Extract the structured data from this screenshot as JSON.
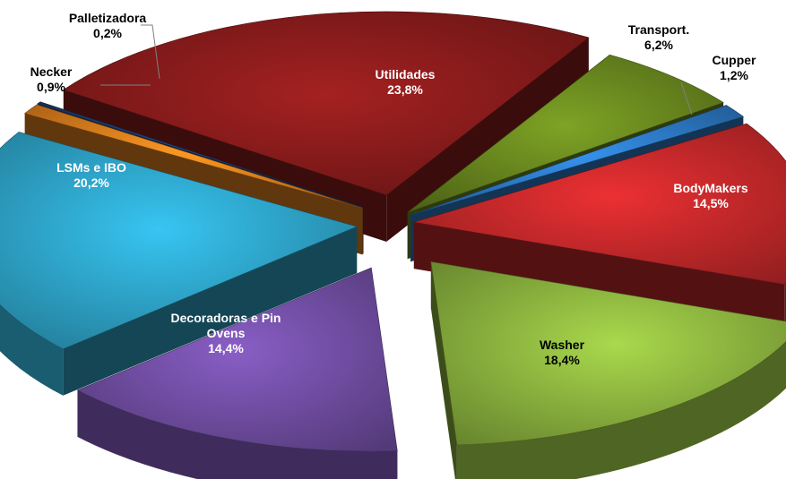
{
  "chart_data": {
    "type": "pie",
    "style": "3d-exploded",
    "title": "",
    "slices": [
      {
        "label": "Utilidades",
        "value": 23.8,
        "display": "23,8%",
        "color": "#8c1c1c",
        "label_color": "#ffffff",
        "label_lines": [
          "Utilidades"
        ]
      },
      {
        "label": "Transport.",
        "value": 6.2,
        "display": "6,2%",
        "color": "#6b8a1f",
        "label_color": "#000000",
        "label_lines": [
          "Transport."
        ]
      },
      {
        "label": "Cupper",
        "value": 1.2,
        "display": "1,2%",
        "color": "#2e7cc9",
        "label_color": "#000000",
        "label_lines": [
          "Cupper"
        ]
      },
      {
        "label": "BodyMakers",
        "value": 14.5,
        "display": "14,5%",
        "color": "#c8292b",
        "label_color": "#ffffff",
        "label_lines": [
          "BodyMakers"
        ]
      },
      {
        "label": "Washer",
        "value": 18.4,
        "display": "18,4%",
        "color": "#8fb840",
        "label_color": "#000000",
        "label_lines": [
          "Washer"
        ]
      },
      {
        "label": "Decoradoras e Pin Ovens",
        "value": 14.4,
        "display": "14,4%",
        "color": "#7450a8",
        "label_color": "#ffffff",
        "label_lines": [
          "Decoradoras e Pin",
          "Ovens"
        ]
      },
      {
        "label": "LSMs e IBO",
        "value": 20.2,
        "display": "20,2%",
        "color": "#2fa7cc",
        "label_color": "#ffffff",
        "label_lines": [
          "LSMs e IBO"
        ]
      },
      {
        "label": "Necker",
        "value": 0.9,
        "display": "0,9%",
        "color": "#e8821e",
        "label_color": "#000000",
        "label_lines": [
          "Necker"
        ]
      },
      {
        "label": "Palletizadora",
        "value": 0.2,
        "display": "0,2%",
        "color": "#1f3f73",
        "label_color": "#000000",
        "label_lines": [
          "Palletizadora"
        ]
      }
    ]
  }
}
